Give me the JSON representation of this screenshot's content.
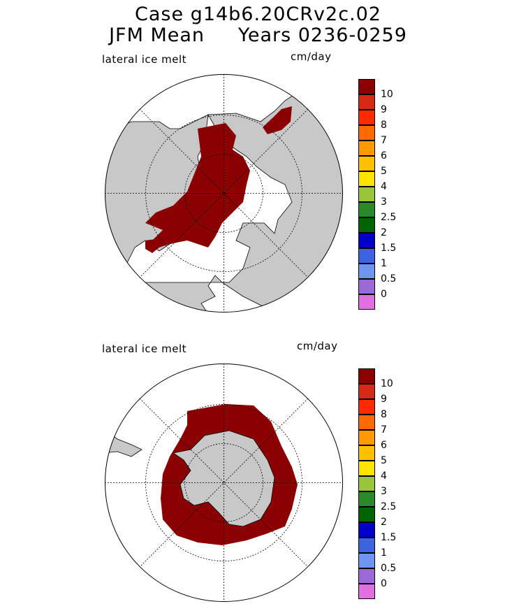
{
  "title": {
    "line1": "Case g14b6.20CRv2c.02",
    "line2": "JFM Mean     Years 0236-0259"
  },
  "colors": {
    "land": "#c8c8c8",
    "ice": "#8b0000",
    "ocean": "#ffffff"
  },
  "colorbar": {
    "levels": [
      "10",
      "9",
      "8",
      "7",
      "6",
      "5",
      "4",
      "3",
      "2.5",
      "2",
      "1.5",
      "1",
      "0.5",
      "0"
    ],
    "colors": [
      "#8b0000",
      "#d42a16",
      "#ff2a00",
      "#ff6a00",
      "#ff9a00",
      "#ffc000",
      "#ffe400",
      "#9ac43a",
      "#2a8a2a",
      "#006400",
      "#0000c8",
      "#3c64e0",
      "#6e96f0",
      "#9a6ad6",
      "#e070e0"
    ]
  },
  "panels": [
    {
      "id": "north",
      "label": "lateral ice melt",
      "unit": "cm/day"
    },
    {
      "id": "south",
      "label": "lateral ice melt",
      "unit": "cm/day"
    }
  ]
}
